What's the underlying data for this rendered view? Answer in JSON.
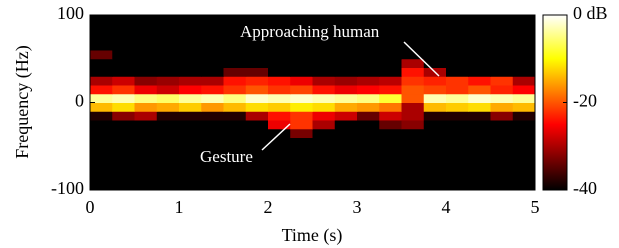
{
  "chart_data": {
    "type": "heatmap",
    "xlabel": "Time (s)",
    "ylabel": "Frequency (Hz)",
    "annotations": [
      {
        "text": "Approaching human"
      },
      {
        "text": "Gesture"
      }
    ],
    "x_bins": [
      0,
      0.25,
      0.5,
      0.75,
      1,
      1.25,
      1.5,
      1.75,
      2,
      2.25,
      2.5,
      2.75,
      3,
      3.25,
      3.5,
      3.75,
      4,
      4.25,
      4.5,
      4.75,
      5
    ],
    "y_bins": [
      -100,
      -90,
      -80,
      -70,
      -60,
      -50,
      -40,
      -30,
      -20,
      -10,
      0,
      10,
      20,
      30,
      40,
      50,
      60,
      70,
      80,
      90,
      100
    ],
    "z": [
      [
        -40,
        -40,
        -40,
        -40,
        -40,
        -40,
        -40,
        -40,
        -40,
        -40,
        -40,
        -40,
        -40,
        -40,
        -40,
        -40,
        -40,
        -40,
        -40,
        -40
      ],
      [
        -40,
        -40,
        -40,
        -40,
        -40,
        -40,
        -40,
        -40,
        -40,
        -40,
        -40,
        -40,
        -40,
        -40,
        -40,
        -40,
        -40,
        -40,
        -40,
        -40
      ],
      [
        -40,
        -40,
        -40,
        -40,
        -40,
        -40,
        -40,
        -40,
        -40,
        -40,
        -40,
        -40,
        -40,
        -40,
        -40,
        -40,
        -40,
        -40,
        -40,
        -40
      ],
      [
        -40,
        -40,
        -40,
        -40,
        -40,
        -40,
        -40,
        -40,
        -40,
        -40,
        -40,
        -40,
        -40,
        -40,
        -40,
        -40,
        -40,
        -40,
        -40,
        -40
      ],
      [
        -40,
        -40,
        -40,
        -40,
        -40,
        -40,
        -40,
        -40,
        -40,
        -40,
        -40,
        -40,
        -40,
        -40,
        -40,
        -40,
        -40,
        -40,
        -40,
        -40
      ],
      [
        -40,
        -40,
        -40,
        -40,
        -40,
        -40,
        -40,
        -40,
        -40,
        -40,
        -40,
        -40,
        -40,
        -40,
        -40,
        -40,
        -40,
        -40,
        -40,
        -40
      ],
      [
        -40,
        -40,
        -40,
        -40,
        -40,
        -40,
        -40,
        -40,
        -40,
        -33,
        -40,
        -40,
        -40,
        -40,
        -40,
        -40,
        -40,
        -40,
        -40,
        -40
      ],
      [
        -40,
        -40,
        -40,
        -40,
        -40,
        -40,
        -40,
        -40,
        -26,
        -22,
        -30,
        -40,
        -40,
        -34,
        -32,
        -40,
        -40,
        -40,
        -40,
        -40
      ],
      [
        -38,
        -32,
        -30,
        -38,
        -38,
        -38,
        -38,
        -30,
        -24,
        -22,
        -26,
        -28,
        -34,
        -28,
        -30,
        -38,
        -38,
        -38,
        -32,
        -38
      ],
      [
        -14,
        -12,
        -16,
        -15,
        -13,
        -16,
        -14,
        -12,
        -13,
        -11,
        -12,
        -15,
        -16,
        -18,
        -30,
        -14,
        -13,
        -12,
        -15,
        -14
      ],
      [
        -4,
        -3,
        -5,
        -6,
        -4,
        -3,
        -5,
        -2,
        -3,
        -2,
        -3,
        -4,
        -5,
        -8,
        -20,
        -3,
        -4,
        -2,
        -3,
        -4
      ],
      [
        -24,
        -22,
        -26,
        -28,
        -25,
        -24,
        -22,
        -20,
        -22,
        -21,
        -24,
        -26,
        -25,
        -24,
        -20,
        -21,
        -22,
        -20,
        -23,
        -25
      ],
      [
        -30,
        -28,
        -32,
        -31,
        -30,
        -30,
        -24,
        -23,
        -24,
        -26,
        -30,
        -31,
        -30,
        -29,
        -22,
        -23,
        -22,
        -24,
        -22,
        -30
      ],
      [
        -40,
        -40,
        -40,
        -40,
        -40,
        -40,
        -34,
        -34,
        -40,
        -40,
        -40,
        -40,
        -40,
        -40,
        -24,
        -30,
        -40,
        -40,
        -40,
        -40
      ],
      [
        -40,
        -40,
        -40,
        -40,
        -40,
        -40,
        -40,
        -40,
        -40,
        -40,
        -40,
        -40,
        -40,
        -40,
        -30,
        -40,
        -40,
        -40,
        -40,
        -40
      ],
      [
        -34,
        -40,
        -40,
        -40,
        -40,
        -40,
        -40,
        -40,
        -40,
        -40,
        -40,
        -40,
        -40,
        -40,
        -40,
        -40,
        -40,
        -40,
        -40,
        -40
      ],
      [
        -40,
        -40,
        -40,
        -40,
        -40,
        -40,
        -40,
        -40,
        -40,
        -40,
        -40,
        -40,
        -40,
        -40,
        -40,
        -40,
        -40,
        -40,
        -40,
        -40
      ],
      [
        -40,
        -40,
        -40,
        -40,
        -40,
        -40,
        -40,
        -40,
        -40,
        -40,
        -40,
        -40,
        -40,
        -40,
        -40,
        -40,
        -40,
        -40,
        -40,
        -40
      ],
      [
        -40,
        -40,
        -40,
        -40,
        -40,
        -40,
        -40,
        -40,
        -40,
        -40,
        -40,
        -40,
        -40,
        -40,
        -40,
        -40,
        -40,
        -40,
        -40,
        -40
      ],
      [
        -40,
        -40,
        -40,
        -40,
        -40,
        -40,
        -40,
        -40,
        -40,
        -40,
        -40,
        -40,
        -40,
        -40,
        -40,
        -40,
        -40,
        -40,
        -40,
        -40
      ]
    ],
    "xlim": [
      0,
      5
    ],
    "ylim": [
      -100,
      100
    ],
    "xticks": [
      0,
      1,
      2,
      3,
      4,
      5
    ],
    "yticks": [
      -100,
      0,
      100
    ],
    "clim": [
      -40,
      0
    ],
    "cticks": [
      {
        "value": 0,
        "label": "0 dB"
      },
      -20,
      -40
    ],
    "colormap": "hot"
  }
}
